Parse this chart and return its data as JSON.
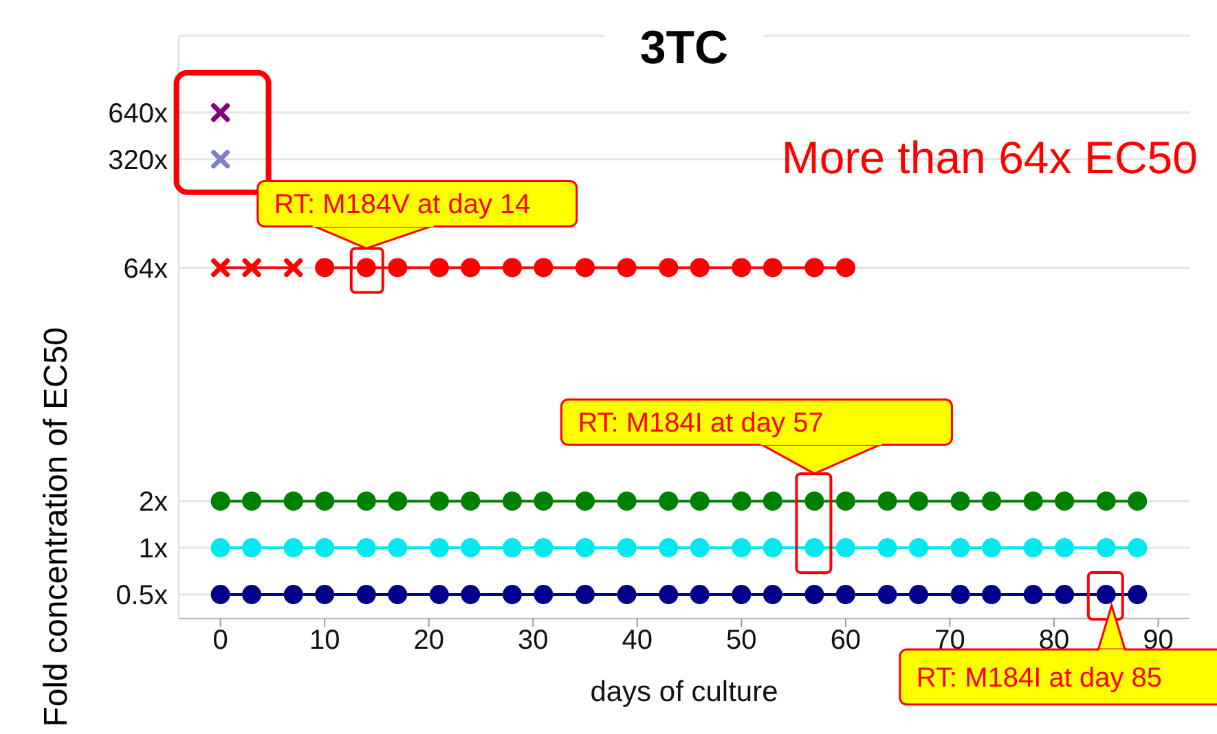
{
  "chart_data": {
    "type": "line",
    "title": "3TC",
    "xlabel": "days of culture",
    "ylabel": "Fold concentration of EC50",
    "log": "y",
    "grid": "y",
    "xlim": [
      -4,
      93
    ],
    "xticks": [
      0,
      10,
      20,
      30,
      40,
      50,
      60,
      70,
      80,
      90
    ],
    "ylim": [
      0.35,
      2000
    ],
    "yticks": [
      {
        "value": 0.5,
        "label": "0.5x"
      },
      {
        "value": 1,
        "label": "1x"
      },
      {
        "value": 2,
        "label": "2x"
      },
      {
        "value": 64,
        "label": "64x"
      },
      {
        "value": 320,
        "label": "320x"
      },
      {
        "value": 640,
        "label": "640x"
      }
    ],
    "series": [
      {
        "marker": "circle",
        "color": "#008000",
        "x": [
          0,
          3,
          7,
          10,
          14,
          17,
          21,
          24,
          28,
          31,
          35,
          39,
          43,
          46,
          50,
          53,
          57,
          60,
          64,
          67,
          71,
          74,
          78,
          81,
          85,
          88
        ],
        "values": [
          2,
          2,
          2,
          2,
          2,
          2,
          2,
          2,
          2,
          2,
          2,
          2,
          2,
          2,
          2,
          2,
          2,
          2,
          2,
          2,
          2,
          2,
          2,
          2,
          2,
          2
        ]
      },
      {
        "marker": "circle",
        "color": "#00e8f0",
        "x": [
          0,
          3,
          7,
          10,
          14,
          17,
          21,
          24,
          28,
          31,
          35,
          39,
          43,
          46,
          50,
          53,
          57,
          60,
          64,
          67,
          71,
          74,
          78,
          81,
          85,
          88
        ],
        "values": [
          1,
          1,
          1,
          1,
          1,
          1,
          1,
          1,
          1,
          1,
          1,
          1,
          1,
          1,
          1,
          1,
          1,
          1,
          1,
          1,
          1,
          1,
          1,
          1,
          1,
          1
        ]
      },
      {
        "marker": "circle",
        "color": "#00008b",
        "x": [
          0,
          3,
          7,
          10,
          14,
          17,
          21,
          24,
          28,
          31,
          35,
          39,
          43,
          46,
          50,
          53,
          57,
          60,
          64,
          67,
          71,
          74,
          78,
          81,
          85,
          88
        ],
        "values": [
          0.5,
          0.5,
          0.5,
          0.5,
          0.5,
          0.5,
          0.5,
          0.5,
          0.5,
          0.5,
          0.5,
          0.5,
          0.5,
          0.5,
          0.5,
          0.5,
          0.5,
          0.5,
          0.5,
          0.5,
          0.5,
          0.5,
          0.5,
          0.5,
          0.5,
          0.5
        ]
      },
      {
        "marker": "cross",
        "color": "#ff0000",
        "x": [
          0,
          3,
          7
        ],
        "values": [
          64,
          64,
          64
        ]
      },
      {
        "marker": "circle",
        "color": "#ff0000",
        "x": [
          10,
          14,
          17,
          21,
          24,
          28,
          31,
          35,
          39,
          43,
          46,
          50,
          53,
          57,
          60
        ],
        "values": [
          64,
          64,
          64,
          64,
          64,
          64,
          64,
          64,
          64,
          64,
          64,
          64,
          64,
          64,
          64
        ]
      },
      {
        "type": "scatter",
        "marker": "cross",
        "color": "#800080",
        "x": [
          0
        ],
        "values": [
          640
        ]
      },
      {
        "type": "scatter",
        "marker": "cross",
        "color": "#8080c8",
        "x": [
          0
        ],
        "values": [
          320
        ]
      }
    ],
    "annotations": [
      "More than 64x EC50",
      {
        "text": "RT: M184V at day 14",
        "x": 14,
        "y": 64
      },
      {
        "text": "RT: M184I at day 57",
        "x": 57,
        "y": 2
      },
      {
        "text": "RT: M184I at day 85",
        "x": 85,
        "y": 0.5
      }
    ]
  }
}
